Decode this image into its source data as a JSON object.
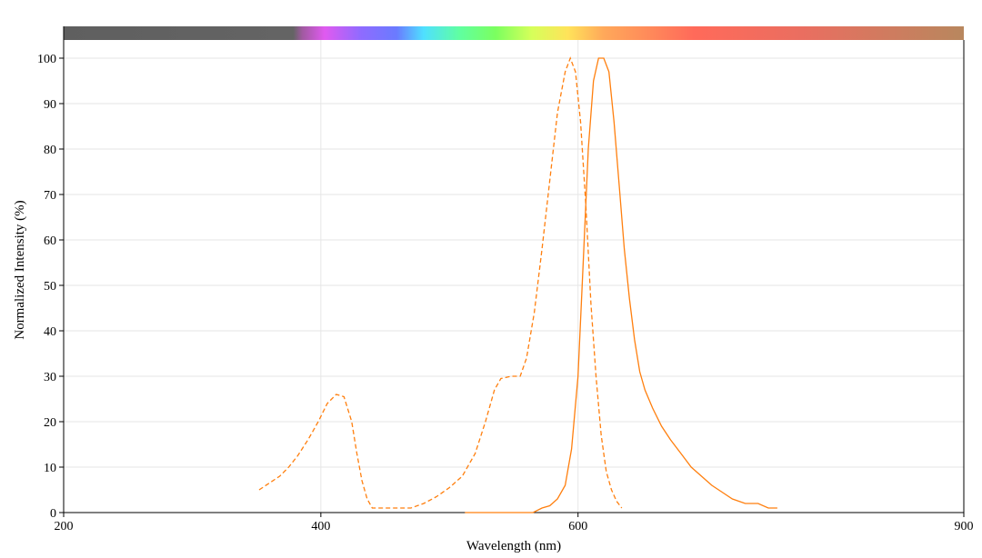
{
  "chart_data": {
    "type": "line",
    "xlabel": "Wavelength (nm)",
    "ylabel": "Normalized Intensity (%)",
    "xlim": [
      200,
      900
    ],
    "ylim": [
      0,
      107
    ],
    "x_ticks": [
      200,
      400,
      600,
      900
    ],
    "y_ticks": [
      0,
      10,
      20,
      30,
      40,
      50,
      60,
      70,
      80,
      90,
      100
    ],
    "grid": true,
    "spectrum_bar": true,
    "series": [
      {
        "style": "dashed",
        "color": "#ff7f0e",
        "points": [
          [
            352,
            5
          ],
          [
            360,
            6.5
          ],
          [
            368,
            8
          ],
          [
            375,
            10
          ],
          [
            382,
            12.5
          ],
          [
            390,
            16
          ],
          [
            398,
            20
          ],
          [
            405,
            24
          ],
          [
            412,
            26
          ],
          [
            418,
            25.5
          ],
          [
            424,
            20
          ],
          [
            428,
            13
          ],
          [
            432,
            7
          ],
          [
            436,
            3
          ],
          [
            440,
            1
          ],
          [
            450,
            1
          ],
          [
            460,
            1
          ],
          [
            470,
            1
          ],
          [
            480,
            2
          ],
          [
            490,
            3.5
          ],
          [
            500,
            5.5
          ],
          [
            510,
            8
          ],
          [
            520,
            13
          ],
          [
            528,
            20
          ],
          [
            535,
            27
          ],
          [
            540,
            29.5
          ],
          [
            548,
            30
          ],
          [
            555,
            30
          ],
          [
            560,
            34
          ],
          [
            566,
            44
          ],
          [
            572,
            58
          ],
          [
            578,
            73
          ],
          [
            584,
            88
          ],
          [
            590,
            97
          ],
          [
            594,
            100
          ],
          [
            598,
            97
          ],
          [
            602,
            86
          ],
          [
            606,
            68
          ],
          [
            610,
            46
          ],
          [
            614,
            30
          ],
          [
            618,
            17
          ],
          [
            622,
            9
          ],
          [
            626,
            5
          ],
          [
            630,
            2.5
          ],
          [
            634,
            1
          ]
        ]
      },
      {
        "style": "solid",
        "color": "#ff7f0e",
        "points": [
          [
            512,
            0
          ],
          [
            530,
            0
          ],
          [
            550,
            0
          ],
          [
            565,
            0
          ],
          [
            572,
            1
          ],
          [
            578,
            1.5
          ],
          [
            584,
            3
          ],
          [
            590,
            6
          ],
          [
            595,
            14
          ],
          [
            600,
            30
          ],
          [
            604,
            55
          ],
          [
            608,
            80
          ],
          [
            612,
            95
          ],
          [
            616,
            100
          ],
          [
            620,
            100
          ],
          [
            624,
            97
          ],
          [
            628,
            86
          ],
          [
            632,
            72
          ],
          [
            636,
            58
          ],
          [
            640,
            47
          ],
          [
            644,
            38
          ],
          [
            648,
            31
          ],
          [
            652,
            27
          ],
          [
            658,
            23
          ],
          [
            665,
            19
          ],
          [
            672,
            16
          ],
          [
            680,
            13
          ],
          [
            688,
            10
          ],
          [
            696,
            8
          ],
          [
            704,
            6
          ],
          [
            712,
            4.5
          ],
          [
            720,
            3
          ],
          [
            730,
            2
          ],
          [
            740,
            2
          ],
          [
            748,
            1
          ],
          [
            755,
            1
          ]
        ]
      }
    ]
  }
}
